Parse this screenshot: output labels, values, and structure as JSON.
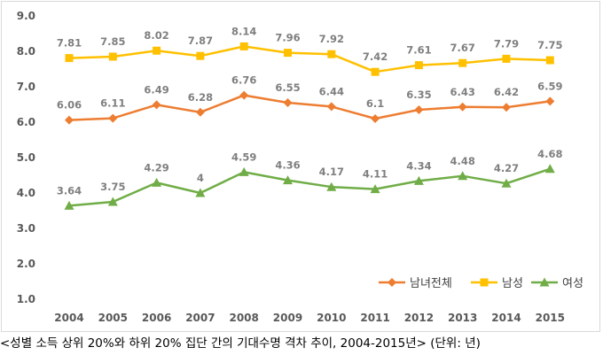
{
  "chart_data": {
    "type": "line",
    "categories": [
      "2004",
      "2005",
      "2006",
      "2007",
      "2008",
      "2009",
      "2010",
      "2011",
      "2012",
      "2013",
      "2014",
      "2015"
    ],
    "ylim": [
      1.0,
      9.0
    ],
    "yticks": [
      "1.0",
      "2.0",
      "3.0",
      "4.0",
      "5.0",
      "6.0",
      "7.0",
      "8.0",
      "9.0"
    ],
    "grid": false,
    "legend_position": "bottom-right",
    "series": [
      {
        "name": "남녀전체",
        "color": "#ed7d31",
        "marker": "diamond",
        "values": [
          6.06,
          6.11,
          6.49,
          6.28,
          6.76,
          6.55,
          6.44,
          6.1,
          6.35,
          6.43,
          6.42,
          6.59
        ],
        "labels": [
          "6.06",
          "6.11",
          "6.49",
          "6.28",
          "6.76",
          "6.55",
          "6.44",
          "6.1",
          "6.35",
          "6.43",
          "6.42",
          "6.59"
        ]
      },
      {
        "name": "남성",
        "color": "#ffc000",
        "marker": "square",
        "values": [
          7.81,
          7.85,
          8.02,
          7.87,
          8.14,
          7.96,
          7.92,
          7.42,
          7.61,
          7.67,
          7.79,
          7.75
        ],
        "labels": [
          "7.81",
          "7.85",
          "8.02",
          "7.87",
          "8.14",
          "7.96",
          "7.92",
          "7.42",
          "7.61",
          "7.67",
          "7.79",
          "7.75"
        ]
      },
      {
        "name": "여성",
        "color": "#70ad47",
        "marker": "triangle",
        "values": [
          3.64,
          3.75,
          4.29,
          4.0,
          4.59,
          4.36,
          4.17,
          4.11,
          4.34,
          4.48,
          4.27,
          4.68
        ],
        "labels": [
          "3.64",
          "3.75",
          "4.29",
          "4",
          "4.59",
          "4.36",
          "4.17",
          "4.11",
          "4.34",
          "4.48",
          "4.27",
          "4.68"
        ]
      }
    ]
  },
  "caption": "<성별 소득 상위 20%와 하위 20% 집단 간의 기대수명 격차 추이, 2004-2015년> (단위: 년)"
}
